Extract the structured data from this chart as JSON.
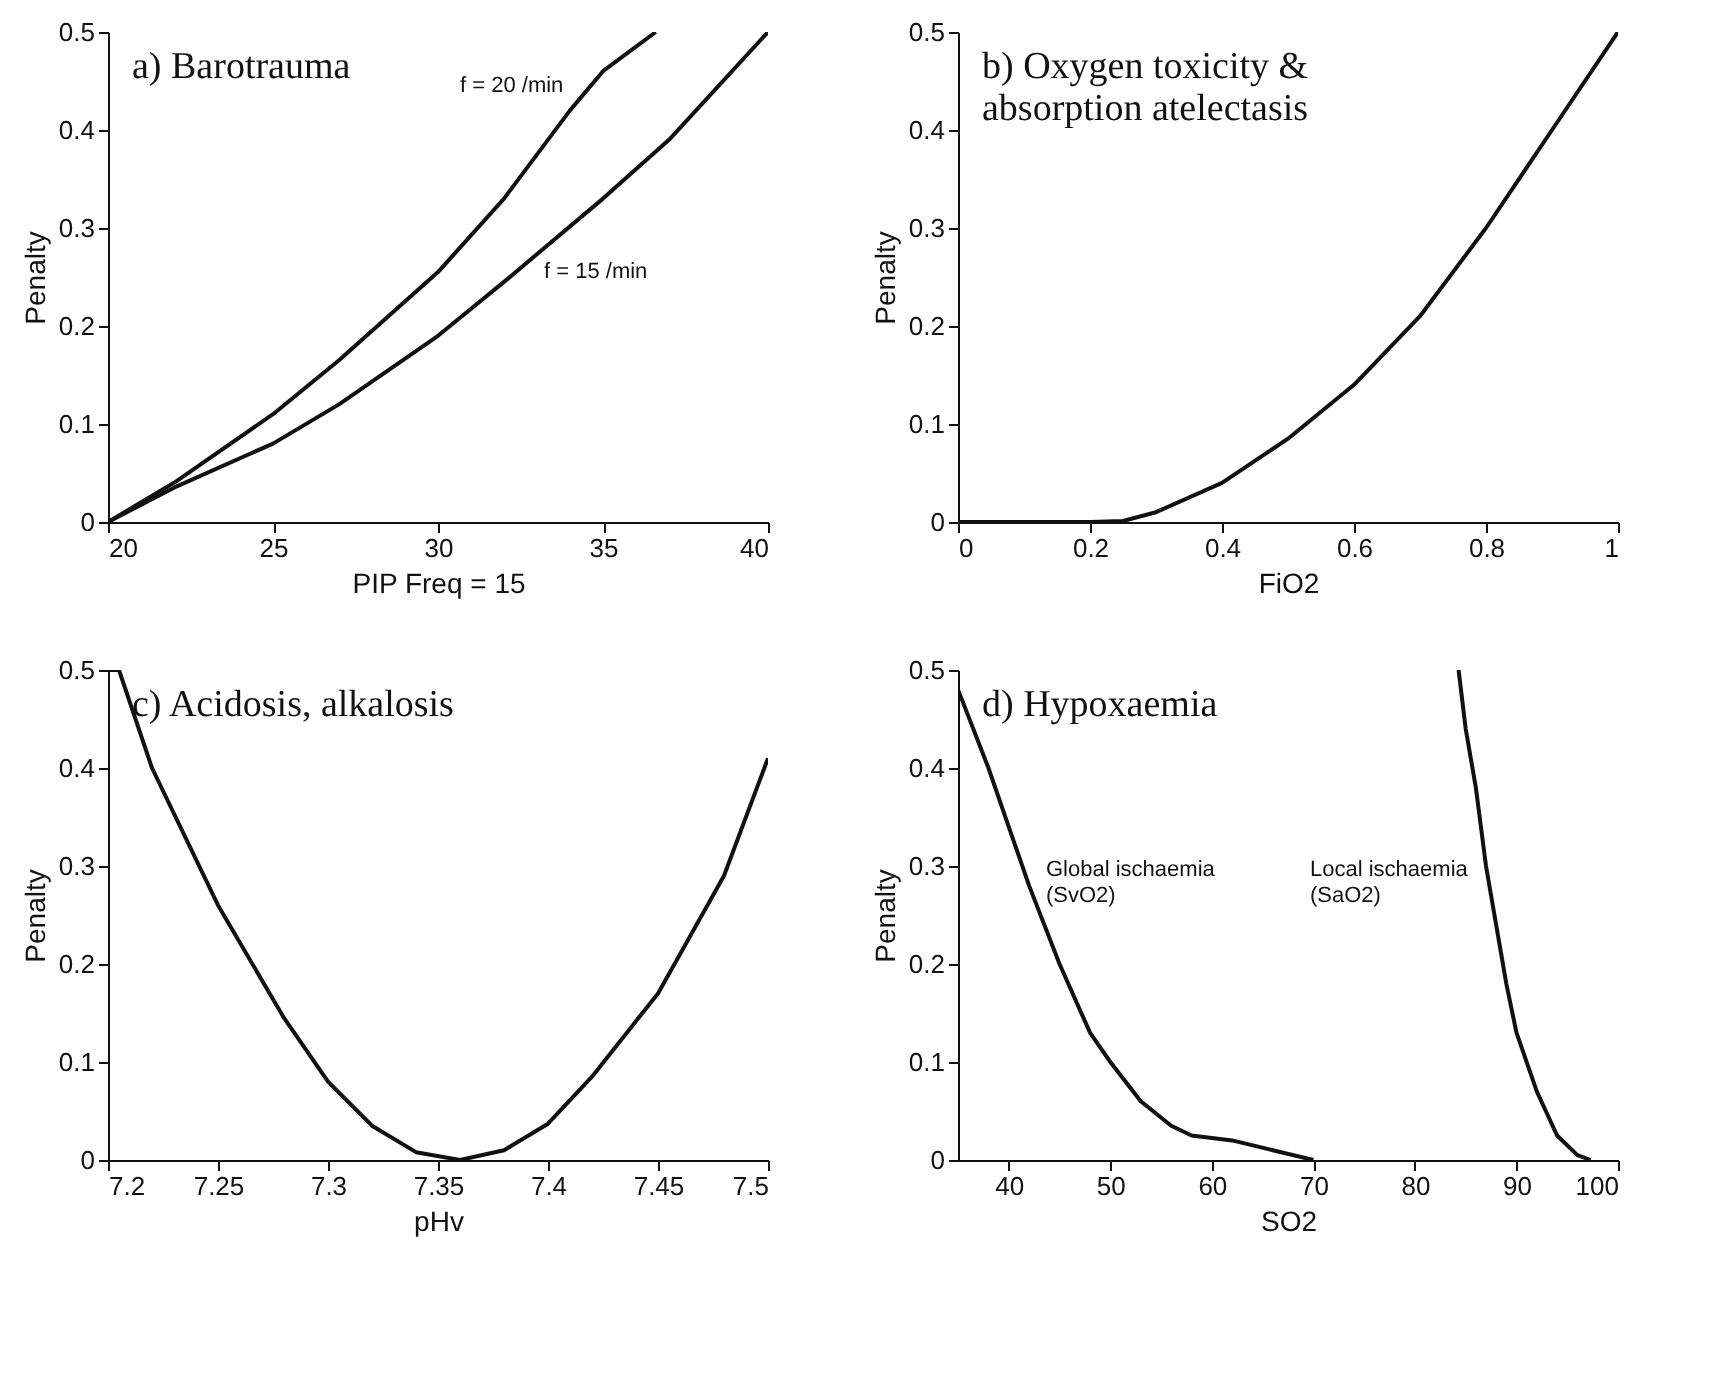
{
  "chart_data": [
    {
      "type": "line",
      "title": "a)  Barotrauma",
      "xlabel": "PIP Freq = 15",
      "ylabel": "Penalty",
      "xlim": [
        20,
        40
      ],
      "ylim": [
        0,
        0.5
      ],
      "xticks": [
        20,
        25,
        30,
        35,
        40
      ],
      "yticks": [
        0,
        0.1,
        0.2,
        0.3,
        0.4,
        0.5
      ],
      "grid": false,
      "marker": "none",
      "line_style": "solid",
      "series": [
        {
          "color": "#111111",
          "x": [
            20,
            22,
            25,
            27,
            30,
            32,
            34,
            35,
            36.6
          ],
          "values": [
            0,
            0.04,
            0.11,
            0.165,
            0.255,
            0.33,
            0.42,
            0.46,
            0.5
          ]
        },
        {
          "color": "#111111",
          "x": [
            20,
            22,
            25,
            27,
            30,
            32,
            35,
            37,
            40
          ],
          "values": [
            0,
            0.035,
            0.08,
            0.12,
            0.19,
            0.245,
            0.33,
            0.39,
            0.5
          ]
        }
      ],
      "annotations": [
        "f = 20 /min",
        "f = 15 /min"
      ]
    },
    {
      "type": "line",
      "title": "b) Oxygen toxicity &\n    absorption atelectasis",
      "xlabel": "FiO2",
      "ylabel": "Penalty",
      "xlim": [
        0,
        1
      ],
      "ylim": [
        0,
        0.5
      ],
      "xticks": [
        0,
        0.2,
        0.4,
        0.6,
        0.8,
        1
      ],
      "yticks": [
        0,
        0.1,
        0.2,
        0.3,
        0.4,
        0.5
      ],
      "grid": false,
      "marker": "none",
      "line_style": "solid",
      "series": [
        {
          "color": "#111111",
          "x": [
            0,
            0.2,
            0.25,
            0.3,
            0.4,
            0.5,
            0.6,
            0.7,
            0.8,
            0.9,
            1.0
          ],
          "values": [
            0,
            0,
            0.001,
            0.01,
            0.04,
            0.085,
            0.14,
            0.21,
            0.3,
            0.4,
            0.5
          ]
        }
      ]
    },
    {
      "type": "line",
      "title": "c)      Acidosis, alkalosis",
      "xlabel": "pHv",
      "ylabel": "Penalty",
      "xlim": [
        7.2,
        7.5
      ],
      "ylim": [
        0,
        0.5
      ],
      "xticks": [
        7.2,
        7.25,
        7.3,
        7.35,
        7.4,
        7.45,
        7.5
      ],
      "yticks": [
        0,
        0.1,
        0.2,
        0.3,
        0.4,
        0.5
      ],
      "grid": false,
      "marker": "none",
      "line_style": "solid",
      "series": [
        {
          "color": "#111111",
          "x": [
            7.2,
            7.205,
            7.22,
            7.25,
            7.28,
            7.3,
            7.32,
            7.34,
            7.36,
            7.38,
            7.4,
            7.42,
            7.45,
            7.48,
            7.5
          ],
          "values": [
            0.5,
            0.5,
            0.4,
            0.26,
            0.145,
            0.08,
            0.035,
            0.008,
            0,
            0.01,
            0.037,
            0.085,
            0.17,
            0.29,
            0.41
          ]
        }
      ]
    },
    {
      "type": "line",
      "title": "d)  Hypoxaemia",
      "xlabel": "SO2",
      "ylabel": "Penalty",
      "xlim": [
        35,
        100
      ],
      "ylim": [
        0,
        0.5
      ],
      "xticks": [
        40,
        50,
        60,
        70,
        80,
        90,
        100
      ],
      "yticks": [
        0,
        0.1,
        0.2,
        0.3,
        0.4,
        0.5
      ],
      "grid": false,
      "marker": "none",
      "line_style": "solid",
      "series": [
        {
          "color": "#111111",
          "x": [
            35,
            38,
            40,
            42,
            45,
            48,
            50,
            53,
            56,
            58,
            62,
            66,
            70
          ],
          "values": [
            0.48,
            0.4,
            0.34,
            0.28,
            0.2,
            0.13,
            0.1,
            0.06,
            0.035,
            0.025,
            0.02,
            0.01,
            0
          ]
        },
        {
          "color": "#111111",
          "x": [
            84.3,
            85,
            86,
            87,
            88,
            89,
            90,
            92,
            94,
            96,
            97.3
          ],
          "values": [
            0.5,
            0.44,
            0.38,
            0.3,
            0.24,
            0.18,
            0.13,
            0.07,
            0.025,
            0.005,
            0
          ]
        }
      ],
      "annotations": [
        "Global ischaemia\n(SvO2)",
        "Local ischaemia\n(SaO2)"
      ]
    }
  ]
}
